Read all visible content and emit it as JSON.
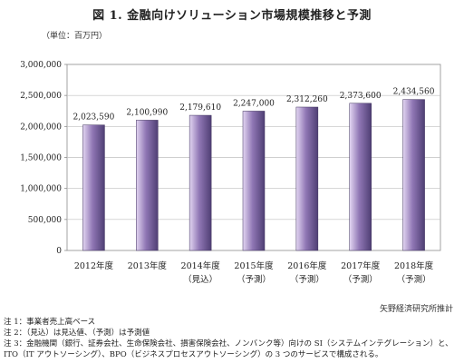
{
  "chart_data": {
    "type": "bar",
    "title": "図 1. 金融向けソリューション市場規模推移と予測",
    "unit_label": "（単位：百万円）",
    "categories": [
      [
        "2012年度",
        ""
      ],
      [
        "2013年度",
        ""
      ],
      [
        "2014年度",
        "（見込）"
      ],
      [
        "2015年度",
        "（予測）"
      ],
      [
        "2016年度",
        "（予測）"
      ],
      [
        "2017年度",
        "（予測）"
      ],
      [
        "2018年度",
        "（予測）"
      ]
    ],
    "values": [
      2023590,
      2100990,
      2179610,
      2247000,
      2312260,
      2373600,
      2434560
    ],
    "value_labels": [
      "2,023,590",
      "2,100,990",
      "2,179,610",
      "2,247,000",
      "2,312,260",
      "2,373,600",
      "2,434,560"
    ],
    "ylim": [
      0,
      3000000
    ],
    "y_ticks": [
      0,
      500000,
      1000000,
      1500000,
      2000000,
      2500000,
      3000000
    ],
    "y_tick_labels": [
      "0",
      "500,000",
      "1,000,000",
      "1,500,000",
      "2,000,000",
      "2,500,000",
      "3,000,000"
    ],
    "grid": true,
    "bar_color_top": "#e3d6f2",
    "bar_color_mid": "#8f76b4",
    "bar_color_bottom": "#4f3f74",
    "grid_color": "#bfbfbf",
    "frame_color": "#8c8c8c",
    "source": "矢野経済研究所推計"
  },
  "notes": [
    "注 1：事業者売上高ベース",
    "注 2：（見込）は見込値、（予測）は予測値",
    "注 3：金融機関（銀行、証券会社、生命保険会社、損害保険会社、ノンバンク等）向けの SI（システムインテグレーション）と、",
    "ITO（IT アウトソーシング）、BPO（ビジネスプロセスアウトソーシング）の 3 つのサービスで構成される。"
  ]
}
